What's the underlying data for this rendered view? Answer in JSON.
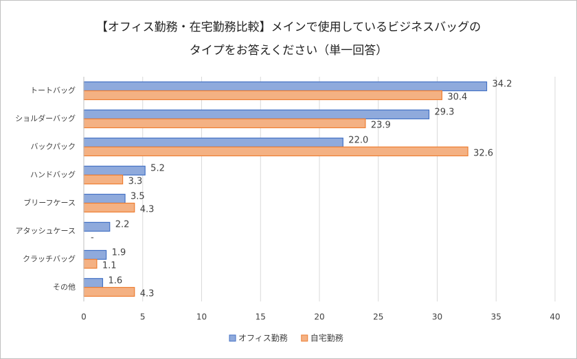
{
  "chart_data": {
    "type": "barh",
    "title": [
      "【オフィス勤務・在宅勤務比較】メインで使用しているビジネスバッグの",
      "タイプをお答えください（単一回答）"
    ],
    "categories": [
      "トートバッグ",
      "ショルダーバッグ",
      "バックパック",
      "ハンドバッグ",
      "ブリーフケース",
      "アタッシュケース",
      "クラッチバッグ",
      "その他"
    ],
    "series": [
      {
        "name": "オフィス勤務",
        "color": "#8faadc",
        "edgecolor": "#4472c4",
        "values": [
          34.2,
          29.3,
          22.0,
          5.2,
          3.5,
          2.2,
          1.9,
          1.6
        ],
        "value_labels": [
          "34.2",
          "29.3",
          "22.0",
          "5.2",
          "3.5",
          "2.2",
          "1.9",
          "1.6"
        ]
      },
      {
        "name": "自宅勤務",
        "color": "#f4b183",
        "edgecolor": "#ed7d31",
        "values": [
          30.4,
          23.9,
          32.6,
          3.3,
          4.3,
          null,
          1.1,
          4.3
        ],
        "value_labels": [
          "30.4",
          "23.9",
          "32.6",
          "3.3",
          "4.3",
          "-",
          "1.1",
          "4.3"
        ]
      }
    ],
    "xlim": [
      0,
      40
    ],
    "xticks": [
      0,
      5,
      10,
      15,
      20,
      25,
      30,
      35,
      40
    ],
    "grid": true,
    "legend": "bottom"
  }
}
